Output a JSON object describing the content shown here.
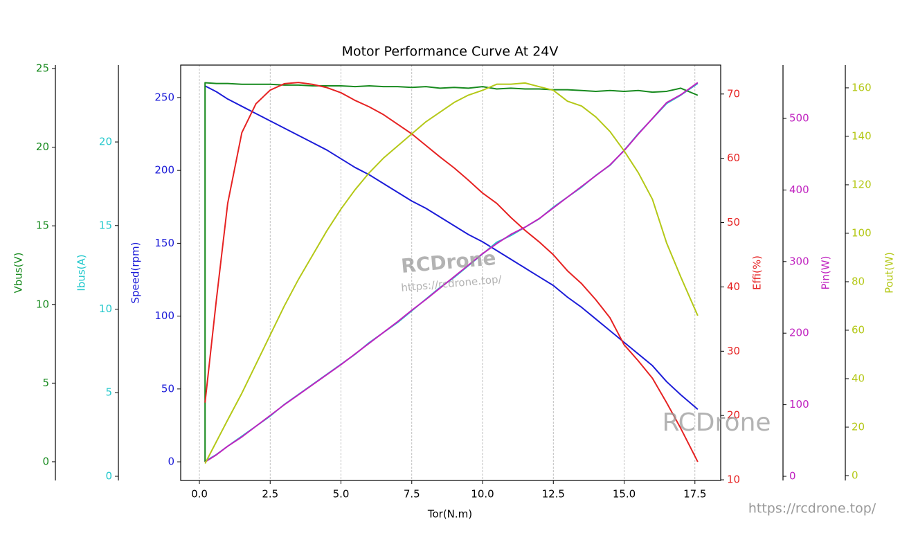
{
  "chart_data": {
    "type": "line",
    "title": "Motor Performance Curve At 24V",
    "xlabel": "Tor(N.m)",
    "x": [
      0.2,
      0.2,
      0.6,
      1.0,
      1.5,
      2.0,
      2.5,
      3.0,
      3.5,
      4.0,
      4.5,
      5.0,
      5.5,
      6.0,
      6.5,
      7.0,
      7.5,
      8.0,
      8.5,
      9.0,
      9.5,
      10.0,
      10.5,
      11.0,
      11.5,
      12.0,
      12.5,
      13.0,
      13.5,
      14.0,
      14.5,
      15.0,
      15.5,
      16.0,
      16.5,
      17.0,
      17.6
    ],
    "xlim": [
      -0.66,
      18.41
    ],
    "xticks": [
      {
        "value": 0,
        "label": "0.0"
      },
      2.5,
      {
        "value": 5,
        "label": "5.0"
      },
      7.5,
      {
        "value": 10,
        "label": "10.0"
      },
      12.5,
      {
        "value": 15,
        "label": "15.0"
      },
      17.5
    ],
    "grid": true,
    "axes": [
      {
        "label": "Speed(rpm)",
        "ylim": [
          -12.8,
          272.3
        ],
        "yticks": [
          0,
          50,
          100,
          150,
          200,
          250
        ]
      },
      {
        "label": "Ibus(A)",
        "ylim": [
          -0.25,
          24.6
        ],
        "yticks": [
          0,
          5,
          10,
          15,
          20
        ]
      },
      {
        "label": "Vbus(V)",
        "ylim": [
          -1.19,
          25.22
        ],
        "yticks": [
          0,
          5,
          10,
          15,
          20,
          25
        ]
      },
      {
        "label": "Effi(%)",
        "ylim": [
          9.9,
          74.5
        ],
        "yticks": [
          10,
          20,
          30,
          40,
          50,
          60,
          70
        ]
      },
      {
        "label": "Pin(W)",
        "ylim": [
          -5.8,
          574.5
        ],
        "yticks": [
          0,
          100,
          200,
          300,
          400,
          500
        ]
      },
      {
        "label": "Pout(W)",
        "ylim": [
          -2,
          169.4
        ],
        "yticks": [
          0,
          20,
          40,
          60,
          80,
          100,
          120,
          140,
          160
        ]
      }
    ],
    "series": [
      {
        "axis": 0,
        "color": "#1c1cd8",
        "values": [
          null,
          258,
          254,
          249,
          244,
          239,
          234,
          229,
          224,
          219,
          214,
          208,
          202,
          197,
          191,
          185,
          179,
          174,
          168,
          162,
          156,
          151,
          145,
          139,
          133,
          127,
          121,
          113,
          106,
          98,
          90,
          82,
          74,
          66,
          55,
          46,
          36
        ]
      },
      {
        "axis": 1,
        "color": "#22c8cc",
        "values": [
          null,
          0.9,
          1.3,
          1.8,
          2.4,
          3.0,
          3.6,
          4.3,
          4.9,
          5.5,
          6.1,
          6.7,
          7.3,
          8.0,
          8.6,
          9.2,
          9.9,
          10.6,
          11.3,
          11.9,
          12.6,
          13.3,
          14.0,
          14.4,
          14.9,
          15.4,
          16.1,
          16.7,
          17.3,
          18.0,
          18.6,
          19.5,
          20.5,
          21.4,
          22.3,
          22.8,
          23.5
        ]
      },
      {
        "axis": 2,
        "color": "#178a1e",
        "values": [
          0,
          24.1,
          24.05,
          24.05,
          24.0,
          24.0,
          24.0,
          23.95,
          23.95,
          23.9,
          23.9,
          23.9,
          23.85,
          23.9,
          23.85,
          23.85,
          23.8,
          23.85,
          23.75,
          23.8,
          23.75,
          23.85,
          23.7,
          23.75,
          23.7,
          23.7,
          23.65,
          23.65,
          23.6,
          23.55,
          23.6,
          23.55,
          23.6,
          23.5,
          23.55,
          23.75,
          23.3
        ]
      },
      {
        "axis": 3,
        "color": "#e62222",
        "values": [
          null,
          22,
          38,
          53,
          64,
          68.5,
          70.6,
          71.6,
          71.8,
          71.5,
          71.0,
          70.2,
          69,
          68,
          66.8,
          65.3,
          63.8,
          62,
          60.2,
          58.5,
          56.6,
          54.6,
          53,
          50.8,
          48.8,
          47,
          45,
          42.5,
          40.5,
          38,
          35.2,
          31,
          28.5,
          25.8,
          22,
          18,
          12.8
        ]
      },
      {
        "axis": 4,
        "color": "#c023c0",
        "values": [
          null,
          20,
          30,
          42,
          55,
          70,
          85,
          100,
          114,
          128,
          142,
          156,
          171,
          186,
          201,
          216,
          232,
          247,
          263,
          279,
          295,
          311,
          325,
          338,
          348,
          360,
          375,
          390,
          405,
          420,
          435,
          455,
          478,
          500,
          522,
          533,
          550
        ]
      },
      {
        "axis": 5,
        "color": "#b4c817",
        "values": [
          null,
          5,
          14,
          23,
          34,
          46,
          58,
          70,
          81,
          91,
          101,
          110,
          118,
          125,
          131,
          136,
          141,
          146,
          150,
          154,
          157,
          159,
          161.5,
          161.5,
          162,
          160.5,
          159,
          154.5,
          152.5,
          148,
          142,
          134,
          125,
          114,
          96,
          82,
          66
        ]
      }
    ]
  },
  "watermarks": [
    "RCDrone",
    "https://rcdrone.top/",
    "RCDrone",
    "https://rcdrone.top/"
  ]
}
